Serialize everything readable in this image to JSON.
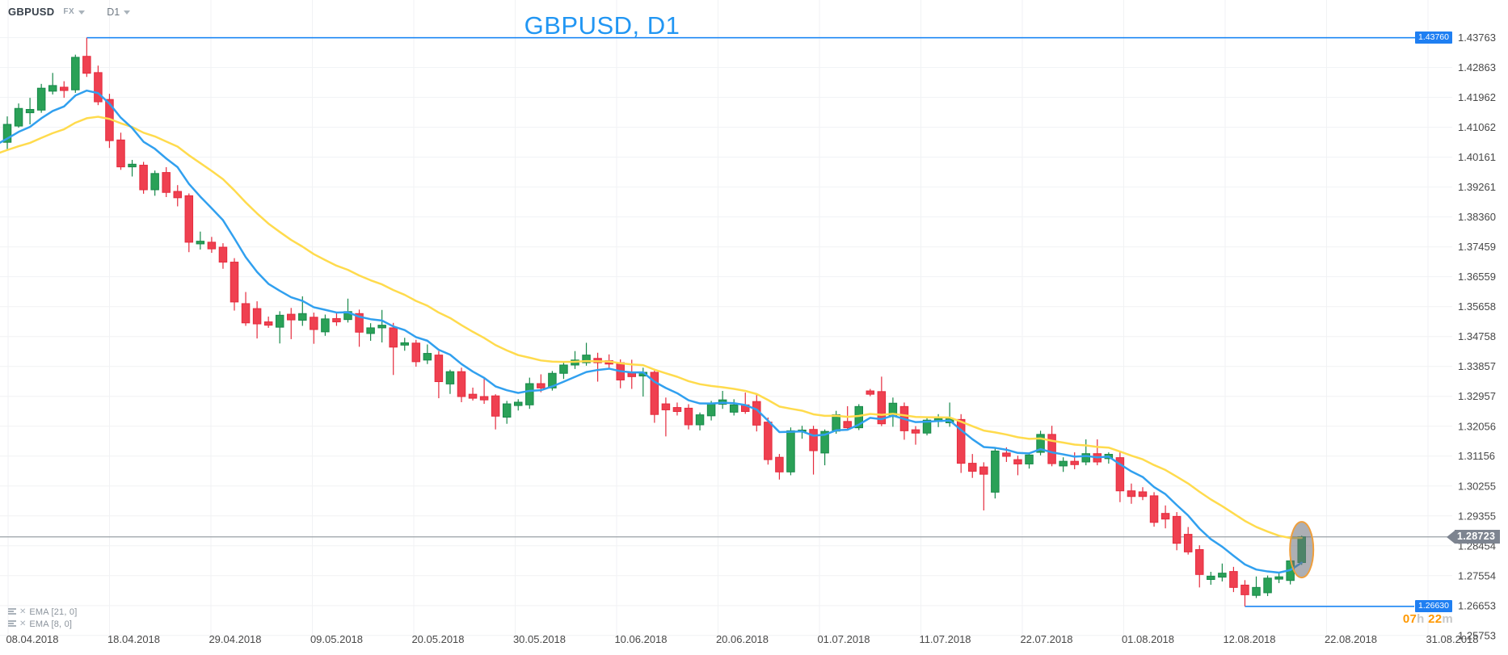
{
  "header": {
    "symbol": "GBPUSD",
    "market": "FX",
    "timeframe": "D1"
  },
  "title": "GBPUSD, D1",
  "icons": {
    "remove": "✕",
    "caret": "▾",
    "levels": "levels-bars"
  },
  "colors": {
    "title_blue": "#2196f3",
    "tag_blue": "#1f7ff2",
    "current_tag_gray": "#7d8490",
    "current_line_gray": "#9aa0a6",
    "level_line_blue": "#1e88f5",
    "candle_up": "#2aa157",
    "candle_up_border": "#17884a",
    "candle_down": "#ef4050",
    "candle_down_border": "#e52b3d",
    "ema_fast_blue": "#31a0ef",
    "ema_slow_yellow": "#ffdb4d",
    "highlight_ellipse_border": "#ef9f3d",
    "countdown_orange": "#ff9800",
    "countdown_gray": "#c8c8c8",
    "axis_text": "#484848",
    "grid": "#f1f2f4"
  },
  "legend": {
    "indicators": [
      {
        "label": "EMA  [21, 0]"
      },
      {
        "label": "EMA  [8, 0]"
      }
    ]
  },
  "price_tags": {
    "high": "1.43760",
    "low": "1.26630",
    "current": "1.28723"
  },
  "countdown": {
    "hours": "07",
    "hours_unit": "h ",
    "minutes": "22",
    "minutes_unit": "m"
  },
  "chart_data": {
    "type": "candlestick",
    "title": "GBPUSD, D1",
    "symbol": "GBPUSD",
    "timeframe": "D1",
    "grid": true,
    "legend_position": "bottom-left",
    "ylim": [
      1.25753,
      1.43763
    ],
    "y_labels": [
      "1.43763",
      "1.42863",
      "1.41962",
      "1.41062",
      "1.40161",
      "1.39261",
      "1.38360",
      "1.37459",
      "1.36559",
      "1.35658",
      "1.34758",
      "1.33857",
      "1.32957",
      "1.32056",
      "1.31156",
      "1.30255",
      "1.29355",
      "1.28454",
      "1.27554",
      "1.26653",
      "1.25753"
    ],
    "x_labels": [
      "08.04.2018",
      "18.04.2018",
      "29.04.2018",
      "09.05.2018",
      "20.05.2018",
      "30.05.2018",
      "10.06.2018",
      "20.06.2018",
      "01.07.2018",
      "11.07.2018",
      "22.07.2018",
      "01.08.2018",
      "12.08.2018",
      "22.08.2018",
      "31.08.2018"
    ],
    "price_lines": [
      {
        "name": "high-level",
        "value": 1.4376,
        "label": "1.43760",
        "style": "blue",
        "starts_at_candle": 7
      },
      {
        "name": "low-level",
        "value": 1.2663,
        "label": "1.26630",
        "style": "blue",
        "starts_at_candle": 109
      },
      {
        "name": "current-price",
        "value": 1.28723,
        "label": "1.28723",
        "style": "gray",
        "full_width": true
      }
    ],
    "indicators": [
      {
        "name": "EMA",
        "period": 21,
        "shift": 0,
        "color": "#ffdb4d"
      },
      {
        "name": "EMA",
        "period": 8,
        "shift": 0,
        "color": "#31a0ef"
      }
    ],
    "highlight": {
      "candle_index": 114,
      "shape": "ellipse",
      "fill": "rgba(105,110,118,0.55)",
      "border": "#ef9f3d"
    },
    "candles": [
      [
        1.4061,
        1.4139,
        1.404,
        1.4115
      ],
      [
        1.411,
        1.4178,
        1.4105,
        1.4163
      ],
      [
        1.415,
        1.4195,
        1.4115,
        1.416
      ],
      [
        1.4158,
        1.4237,
        1.415,
        1.4224
      ],
      [
        1.4215,
        1.427,
        1.4205,
        1.4232
      ],
      [
        1.4227,
        1.4245,
        1.4195,
        1.4217
      ],
      [
        1.4219,
        1.4325,
        1.421,
        1.4317
      ],
      [
        1.432,
        1.4376,
        1.4258,
        1.4269
      ],
      [
        1.4271,
        1.4292,
        1.4173,
        1.4183
      ],
      [
        1.419,
        1.4207,
        1.4044,
        1.4066
      ],
      [
        1.4068,
        1.409,
        1.3978,
        1.3987
      ],
      [
        1.3987,
        1.4008,
        1.3958,
        1.3995
      ],
      [
        1.3992,
        1.4002,
        1.3906,
        1.3918
      ],
      [
        1.3918,
        1.3976,
        1.39,
        1.3967
      ],
      [
        1.397,
        1.3986,
        1.3896,
        1.391
      ],
      [
        1.3913,
        1.3932,
        1.3868,
        1.3894
      ],
      [
        1.39,
        1.3907,
        1.373,
        1.376
      ],
      [
        1.3755,
        1.3792,
        1.3738,
        1.3763
      ],
      [
        1.376,
        1.3776,
        1.3728,
        1.374
      ],
      [
        1.3745,
        1.3757,
        1.368,
        1.37
      ],
      [
        1.37,
        1.3712,
        1.3554,
        1.358
      ],
      [
        1.3575,
        1.361,
        1.3508,
        1.3517
      ],
      [
        1.356,
        1.3582,
        1.347,
        1.3514
      ],
      [
        1.352,
        1.3536,
        1.3502,
        1.351
      ],
      [
        1.3504,
        1.3552,
        1.3455,
        1.354
      ],
      [
        1.3543,
        1.3562,
        1.3468,
        1.3526
      ],
      [
        1.3525,
        1.3597,
        1.3508,
        1.3545
      ],
      [
        1.3534,
        1.3548,
        1.3454,
        1.3497
      ],
      [
        1.349,
        1.3542,
        1.3478,
        1.3529
      ],
      [
        1.353,
        1.3546,
        1.3508,
        1.352
      ],
      [
        1.3527,
        1.359,
        1.3518,
        1.3551
      ],
      [
        1.3545,
        1.3557,
        1.3445,
        1.3489
      ],
      [
        1.3485,
        1.3516,
        1.3463,
        1.3502
      ],
      [
        1.3502,
        1.3556,
        1.3458,
        1.351
      ],
      [
        1.3502,
        1.3517,
        1.336,
        1.3444
      ],
      [
        1.345,
        1.3472,
        1.3433,
        1.3457
      ],
      [
        1.3456,
        1.3466,
        1.3385,
        1.34
      ],
      [
        1.3405,
        1.3452,
        1.3393,
        1.3425
      ],
      [
        1.342,
        1.3432,
        1.329,
        1.334
      ],
      [
        1.3333,
        1.3376,
        1.3303,
        1.337
      ],
      [
        1.337,
        1.3382,
        1.3278,
        1.3295
      ],
      [
        1.3302,
        1.3322,
        1.3283,
        1.329
      ],
      [
        1.3295,
        1.3352,
        1.3273,
        1.3285
      ],
      [
        1.3297,
        1.3302,
        1.3196,
        1.3236
      ],
      [
        1.3233,
        1.3282,
        1.3213,
        1.3273
      ],
      [
        1.3268,
        1.3287,
        1.3253,
        1.3278
      ],
      [
        1.327,
        1.3352,
        1.3258,
        1.3334
      ],
      [
        1.3334,
        1.3362,
        1.3308,
        1.3321
      ],
      [
        1.3321,
        1.3372,
        1.3313,
        1.3365
      ],
      [
        1.3365,
        1.3402,
        1.3348,
        1.339
      ],
      [
        1.339,
        1.3432,
        1.3378,
        1.3405
      ],
      [
        1.3397,
        1.3457,
        1.3388,
        1.342
      ],
      [
        1.341,
        1.3427,
        1.334,
        1.3397
      ],
      [
        1.3403,
        1.3422,
        1.3378,
        1.3393
      ],
      [
        1.3397,
        1.3407,
        1.332,
        1.3345
      ],
      [
        1.3369,
        1.3406,
        1.3318,
        1.3355
      ],
      [
        1.3357,
        1.3382,
        1.3295,
        1.3368
      ],
      [
        1.3368,
        1.3377,
        1.3216,
        1.3241
      ],
      [
        1.3273,
        1.3292,
        1.3175,
        1.3255
      ],
      [
        1.3262,
        1.3277,
        1.3238,
        1.325
      ],
      [
        1.326,
        1.3272,
        1.3196,
        1.321
      ],
      [
        1.321,
        1.3247,
        1.3193,
        1.324
      ],
      [
        1.3237,
        1.3282,
        1.3223,
        1.3273
      ],
      [
        1.3272,
        1.3312,
        1.3258,
        1.3285
      ],
      [
        1.3248,
        1.3287,
        1.3238,
        1.327
      ],
      [
        1.327,
        1.3307,
        1.3243,
        1.325
      ],
      [
        1.328,
        1.3302,
        1.319,
        1.3209
      ],
      [
        1.3218,
        1.3232,
        1.309,
        1.3105
      ],
      [
        1.3112,
        1.3122,
        1.3045,
        1.3068
      ],
      [
        1.3068,
        1.3202,
        1.3058,
        1.3192
      ],
      [
        1.319,
        1.3207,
        1.3168,
        1.3194
      ],
      [
        1.3196,
        1.3207,
        1.306,
        1.3132
      ],
      [
        1.3125,
        1.3196,
        1.3088,
        1.319
      ],
      [
        1.3191,
        1.3252,
        1.3183,
        1.324
      ],
      [
        1.322,
        1.3266,
        1.3194,
        1.3201
      ],
      [
        1.3201,
        1.3272,
        1.3194,
        1.3265
      ],
      [
        1.3312,
        1.3318,
        1.3296,
        1.3302
      ],
      [
        1.331,
        1.3355,
        1.3206,
        1.3213
      ],
      [
        1.3235,
        1.3292,
        1.3204,
        1.3275
      ],
      [
        1.3265,
        1.3277,
        1.3165,
        1.3192
      ],
      [
        1.3195,
        1.3206,
        1.315,
        1.3185
      ],
      [
        1.3185,
        1.3232,
        1.3178,
        1.3224
      ],
      [
        1.322,
        1.3242,
        1.3203,
        1.3228
      ],
      [
        1.3216,
        1.3277,
        1.3204,
        1.3228
      ],
      [
        1.3226,
        1.3242,
        1.3065,
        1.3094
      ],
      [
        1.3094,
        1.3122,
        1.305,
        1.307
      ],
      [
        1.3083,
        1.3097,
        1.2952,
        1.3061
      ],
      [
        1.3007,
        1.3142,
        1.2988,
        1.3131
      ],
      [
        1.3125,
        1.3142,
        1.3098,
        1.3115
      ],
      [
        1.3105,
        1.3117,
        1.3058,
        1.3092
      ],
      [
        1.3092,
        1.3127,
        1.3078,
        1.3119
      ],
      [
        1.3127,
        1.3192,
        1.3118,
        1.3181
      ],
      [
        1.3181,
        1.3207,
        1.3085,
        1.3093
      ],
      [
        1.3086,
        1.3112,
        1.3068,
        1.31
      ],
      [
        1.31,
        1.3127,
        1.3076,
        1.309
      ],
      [
        1.3098,
        1.3166,
        1.3088,
        1.3123
      ],
      [
        1.3123,
        1.3166,
        1.3088,
        1.3098
      ],
      [
        1.3108,
        1.3127,
        1.3093,
        1.3121
      ],
      [
        1.3111,
        1.3132,
        1.2977,
        1.3011
      ],
      [
        1.3011,
        1.3033,
        1.2972,
        1.2994
      ],
      [
        1.3008,
        1.3022,
        1.2983,
        1.2994
      ],
      [
        1.2996,
        1.3007,
        1.2903,
        1.2916
      ],
      [
        1.2943,
        1.2967,
        1.2898,
        1.2926
      ],
      [
        1.2934,
        1.2947,
        1.2832,
        1.2853
      ],
      [
        1.288,
        1.2902,
        1.2819,
        1.2827
      ],
      [
        1.2834,
        1.2847,
        1.272,
        1.2759
      ],
      [
        1.2744,
        1.2767,
        1.2728,
        1.2754
      ],
      [
        1.2751,
        1.2792,
        1.2738,
        1.2763
      ],
      [
        1.2768,
        1.2782,
        1.2706,
        1.272
      ],
      [
        1.2727,
        1.2742,
        1.2663,
        1.2698
      ],
      [
        1.2696,
        1.2753,
        1.2688,
        1.272
      ],
      [
        1.2704,
        1.2756,
        1.2694,
        1.2748
      ],
      [
        1.2745,
        1.2762,
        1.2733,
        1.2752
      ],
      [
        1.2741,
        1.2807,
        1.2729,
        1.28
      ],
      [
        1.2795,
        1.2876,
        1.2788,
        1.28723
      ]
    ]
  }
}
